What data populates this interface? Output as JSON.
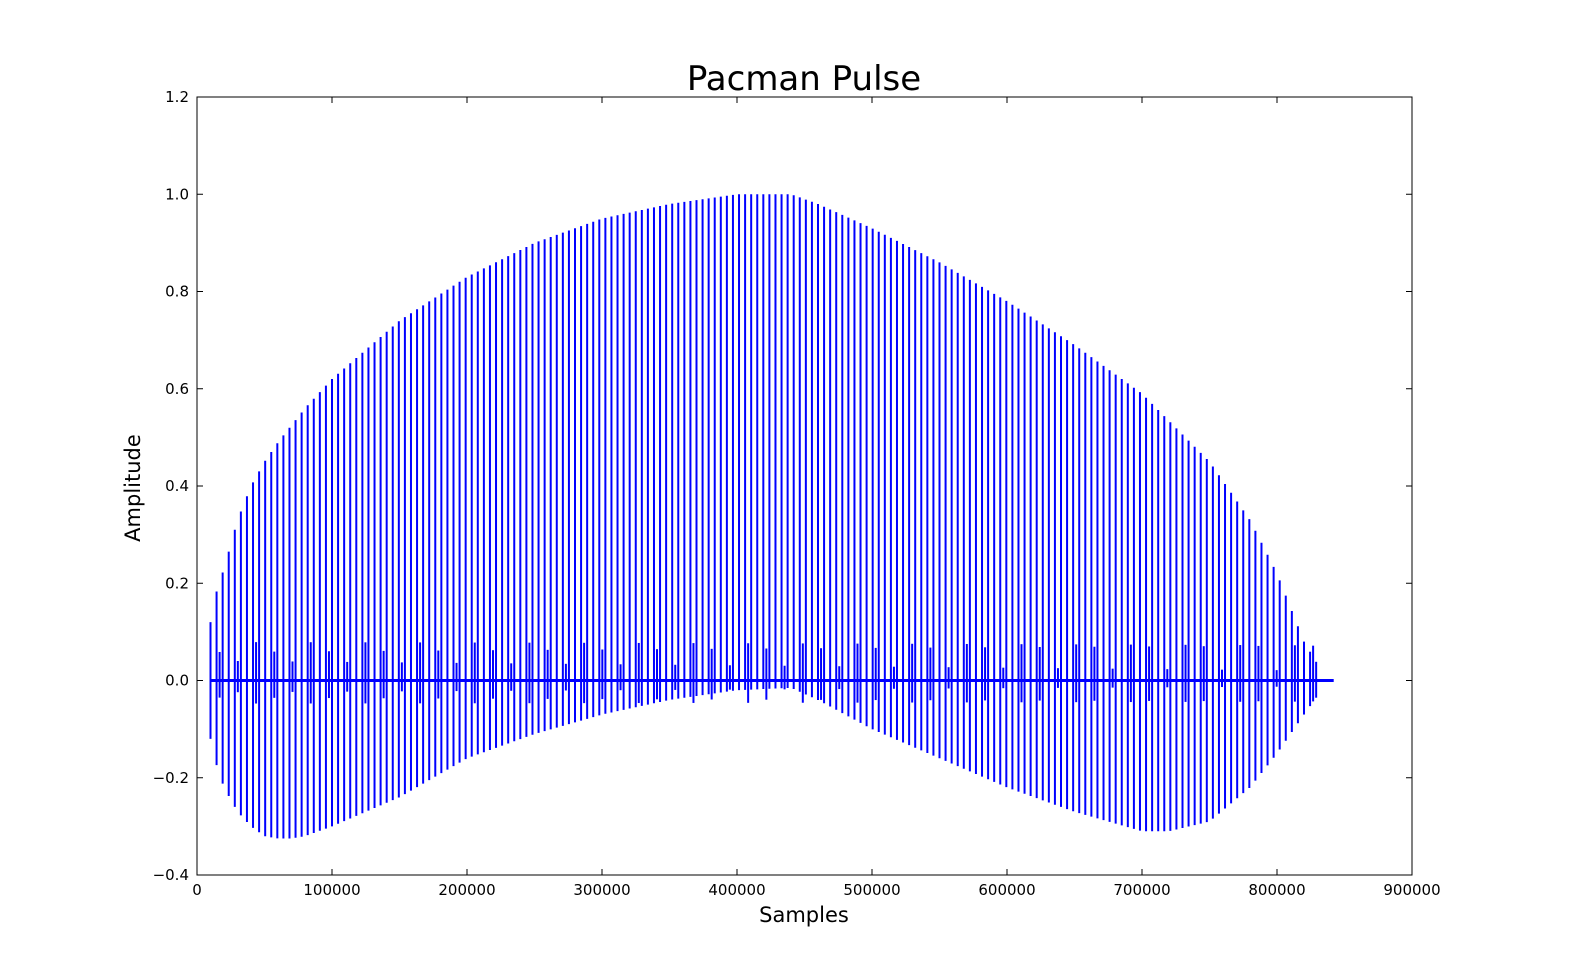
{
  "chart_data": {
    "type": "line",
    "title": "Pacman Pulse",
    "xlabel": "Samples",
    "ylabel": "Amplitude",
    "xlim": [
      0,
      900000
    ],
    "ylim": [
      -0.4,
      1.2
    ],
    "xticks": [
      0,
      100000,
      200000,
      300000,
      400000,
      500000,
      600000,
      700000,
      800000,
      900000
    ],
    "xtick_labels": [
      "0",
      "100000",
      "200000",
      "300000",
      "400000",
      "500000",
      "600000",
      "700000",
      "800000",
      "900000"
    ],
    "yticks": [
      -0.4,
      -0.2,
      0.0,
      0.2,
      0.4,
      0.6,
      0.8,
      1.0,
      1.2
    ],
    "ytick_labels": [
      "−0.4",
      "−0.2",
      "0.0",
      "0.2",
      "0.4",
      "0.6",
      "0.8",
      "1.0",
      "1.2"
    ],
    "grid": false,
    "legend": "none",
    "series": [
      {
        "color": "#0000ff",
        "pulse_spacing": 4500,
        "baseline_end_x": 842000,
        "upper_envelope": {
          "x": [
            10000,
            15000,
            20000,
            30000,
            40000,
            50000,
            60000,
            80000,
            100000,
            150000,
            200000,
            250000,
            300000,
            350000,
            400000,
            420000,
            440000,
            460000,
            500000,
            550000,
            600000,
            650000,
            700000,
            750000,
            780000,
            800000,
            820000,
            833000
          ],
          "y": [
            0.12,
            0.19,
            0.23,
            0.33,
            0.4,
            0.45,
            0.49,
            0.56,
            0.62,
            0.74,
            0.83,
            0.9,
            0.95,
            0.98,
            1.0,
            1.0,
            1.0,
            0.98,
            0.93,
            0.86,
            0.78,
            0.69,
            0.59,
            0.45,
            0.33,
            0.22,
            0.08,
            0.02
          ]
        },
        "lower_envelope": {
          "x": [
            10000,
            15000,
            20000,
            30000,
            40000,
            50000,
            60000,
            70000,
            80000,
            100000,
            150000,
            200000,
            250000,
            300000,
            350000,
            400000,
            440000,
            460000,
            500000,
            550000,
            600000,
            650000,
            700000,
            720000,
            750000,
            780000,
            800000,
            820000,
            833000
          ],
          "y": [
            -0.12,
            -0.18,
            -0.22,
            -0.27,
            -0.3,
            -0.32,
            -0.325,
            -0.325,
            -0.32,
            -0.3,
            -0.24,
            -0.16,
            -0.11,
            -0.07,
            -0.04,
            -0.02,
            -0.015,
            -0.04,
            -0.1,
            -0.16,
            -0.22,
            -0.27,
            -0.31,
            -0.31,
            -0.29,
            -0.22,
            -0.15,
            -0.07,
            -0.02
          ]
        }
      }
    ]
  }
}
